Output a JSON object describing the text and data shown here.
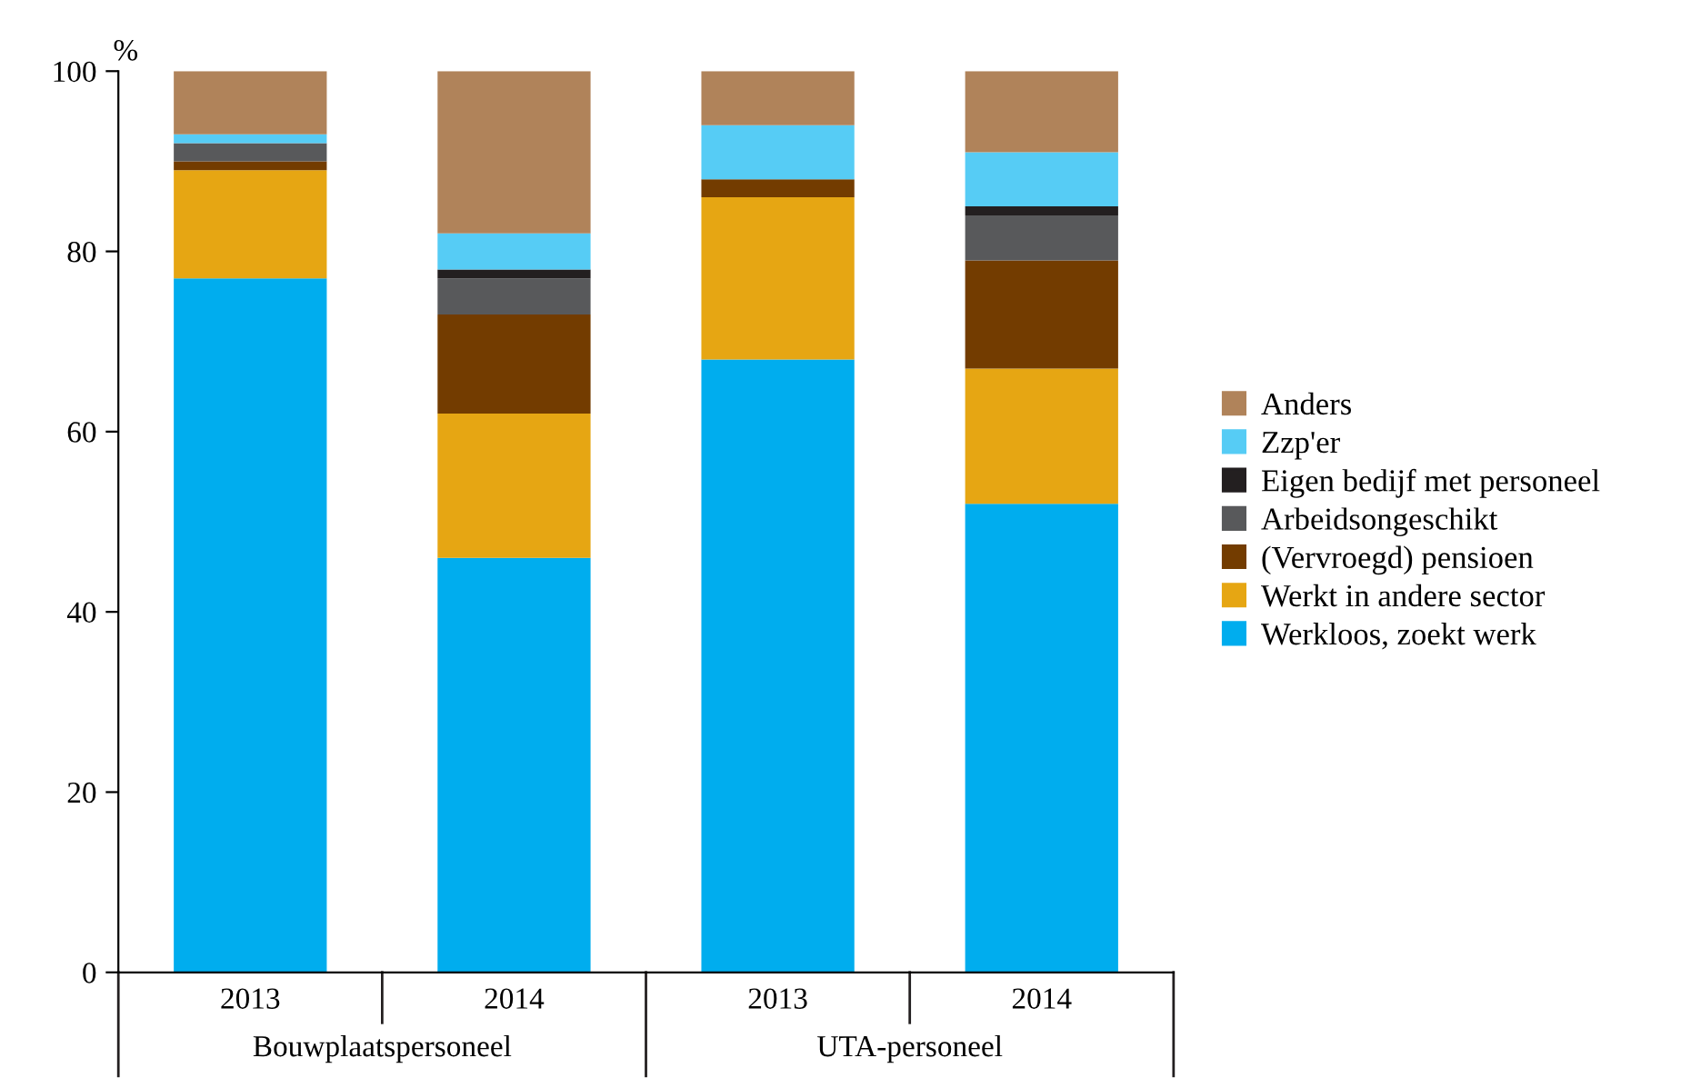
{
  "chart_data": {
    "type": "bar",
    "stacked": true,
    "ylabel": "%",
    "categories": [
      "2013",
      "2014",
      "2013",
      "2014"
    ],
    "annotations": [
      "Bouwplaatspersoneel",
      "UTA-personeel"
    ],
    "series": [
      {
        "name": "Werkloos, zoekt werk",
        "color": "#00adee",
        "values": [
          77,
          46,
          68,
          52
        ]
      },
      {
        "name": "Werkt in andere sector",
        "color": "#e6a613",
        "values": [
          12,
          16,
          18,
          15
        ]
      },
      {
        "name": "(Vervroegd) pensioen",
        "color": "#733c00",
        "values": [
          1,
          11,
          2,
          12
        ]
      },
      {
        "name": "Arbeidsongeschikt",
        "color": "#58595b",
        "values": [
          2,
          4,
          0,
          5
        ]
      },
      {
        "name": "Eigen bedijf met personeel",
        "color": "#231f20",
        "values": [
          0,
          1,
          0,
          1
        ]
      },
      {
        "name": "Zzp'er",
        "color": "#56ccf5",
        "values": [
          1,
          4,
          6,
          6
        ]
      },
      {
        "name": "Anders",
        "color": "#b0835a",
        "values": [
          7,
          18,
          6,
          9
        ]
      }
    ],
    "ylim": [
      0,
      100
    ],
    "yticks": [
      0,
      20,
      40,
      60,
      80,
      100
    ],
    "grid": false,
    "legend": "right"
  }
}
